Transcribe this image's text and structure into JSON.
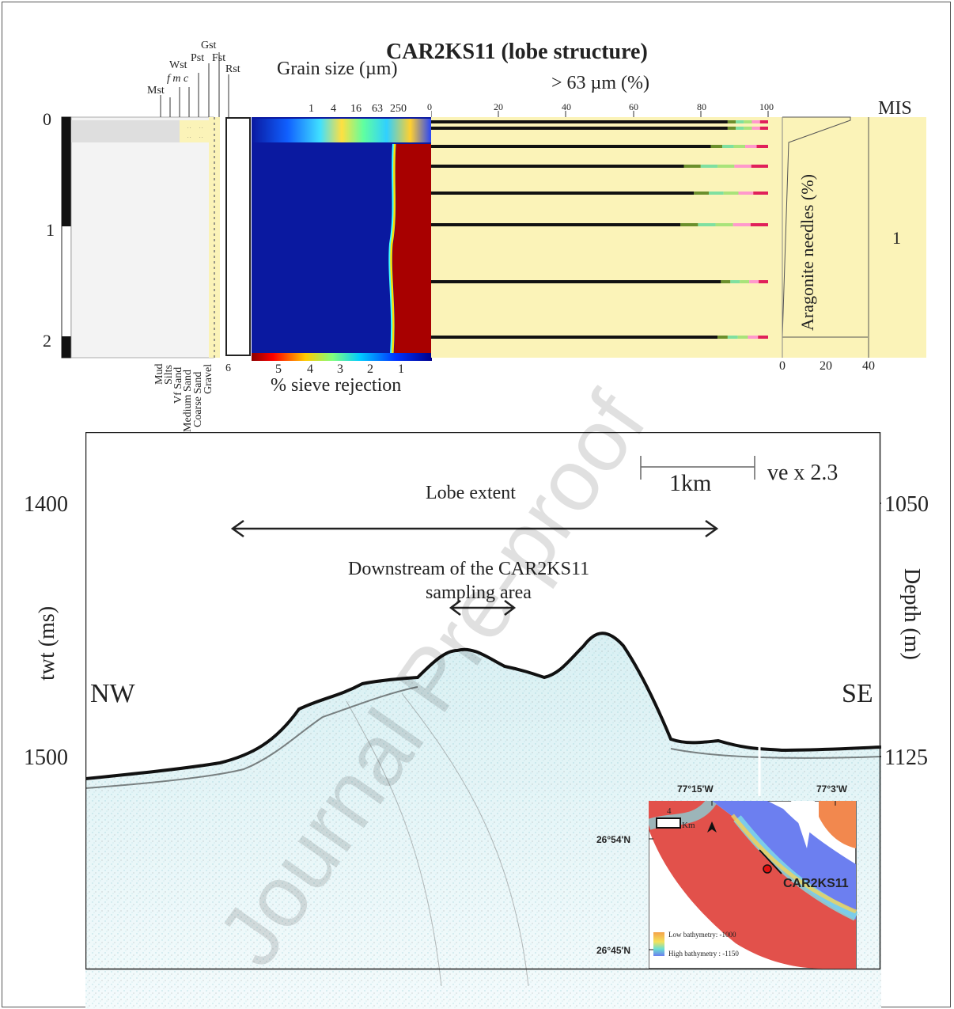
{
  "title": "CAR2KS11 (lobe structure)",
  "core_log": {
    "depth_ticks": [
      "0",
      "1",
      "2"
    ],
    "texture_top": [
      "Mst",
      "Wst",
      "Pst",
      "Gst",
      "Fst",
      "Rst"
    ],
    "texture_sub": "f m c",
    "texture_bottom": [
      "Mud",
      "Silts",
      "Vf Sand",
      "Medium Sand",
      "Coarse Sand",
      "Gravel"
    ],
    "color_box_label": "6"
  },
  "grain_size": {
    "title": "Grain size (µm)",
    "ticks": [
      "1",
      "4",
      "16",
      "63",
      "250"
    ],
    "scale_title": "% sieve rejection",
    "scale_ticks": [
      "5",
      "4",
      "3",
      "2",
      "1"
    ]
  },
  "fraction": {
    "title": "> 63 µm (%)",
    "ticks": [
      "0",
      "20",
      "40",
      "60",
      "80",
      "100"
    ],
    "sample_values": [
      88,
      88,
      83,
      75,
      78,
      74,
      86,
      85
    ]
  },
  "aragonite": {
    "title": "Aragonite needles (%)",
    "ticks": [
      "0",
      "20",
      "40"
    ]
  },
  "mis": {
    "title": "MIS",
    "value": "1"
  },
  "seismic": {
    "left_axis": "twt (ms)",
    "right_axis": "Depth (m)",
    "left_ticks": [
      "1400",
      "1500"
    ],
    "right_ticks": [
      "1050",
      "1125"
    ],
    "nw": "NW",
    "se": "SE",
    "scale": "1km",
    "ve": "ve x 2.3",
    "lobe_extent": "Lobe extent",
    "downstream_line1": "Downstream of the CAR2KS11",
    "downstream_line2": "sampling area"
  },
  "inset": {
    "lon1": "77°15'W",
    "lon2": "77°3'W",
    "lat1": "26°54'N",
    "lat2": "26°45'N",
    "scale_num": "4",
    "scale_unit": "Km",
    "site": "CAR2KS11",
    "legend_low": "Low  bathymetry: -1000",
    "legend_high": "High bathymetry : -1150"
  },
  "watermark": "Journal Pre-proof",
  "colors": {
    "sand_panel": "#fbf3b8",
    "jet_blue": "#0a19a0",
    "jet_red": "#a80000"
  }
}
